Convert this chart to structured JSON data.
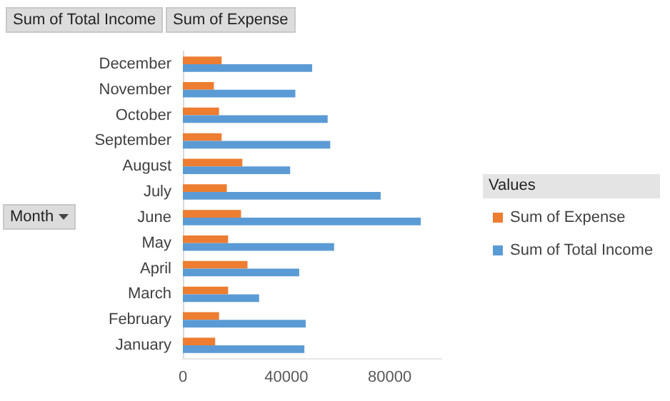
{
  "chart_data": {
    "type": "bar",
    "orientation": "horizontal",
    "ylabel": "Month",
    "legend_title": "Values",
    "annotations": [
      "Sum of Total Income",
      "Sum of Expense"
    ],
    "categories": [
      "December",
      "November",
      "October",
      "September",
      "August",
      "July",
      "June",
      "May",
      "April",
      "March",
      "February",
      "January"
    ],
    "series": [
      {
        "name": "Sum of Expense",
        "color": "#ed7d31",
        "values": [
          15000,
          12000,
          14000,
          15000,
          23000,
          17000,
          22500,
          17500,
          25000,
          17500,
          14000,
          12500
        ]
      },
      {
        "name": "Sum of Total Income",
        "color": "#5b9bd5",
        "values": [
          50000,
          43500,
          56000,
          57000,
          41500,
          76500,
          92000,
          58500,
          45000,
          29500,
          47500,
          47000
        ]
      }
    ],
    "xlim": [
      0,
      100000
    ],
    "xticks": [
      0,
      40000,
      80000
    ],
    "grid": false,
    "legend": "right"
  }
}
